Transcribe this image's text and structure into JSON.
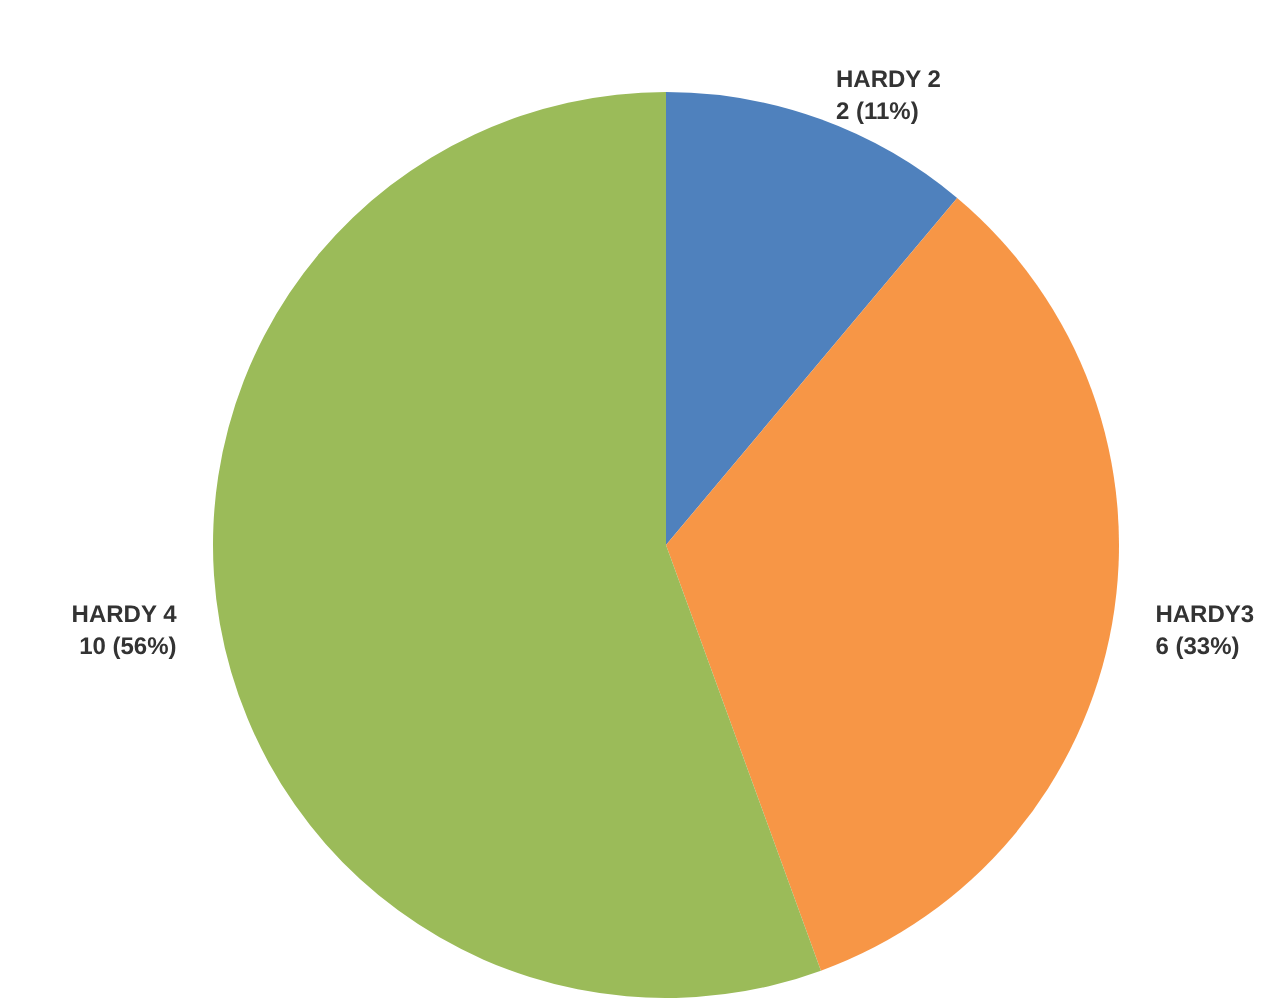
{
  "chart_data": {
    "type": "pie",
    "categories": [
      "HARDY 2",
      "HARDY3",
      "HARDY 4"
    ],
    "values": [
      2,
      6,
      10
    ],
    "colors": [
      "#4f81bd",
      "#f79646",
      "#9bbb59"
    ],
    "value_labels": [
      "2 (11%)",
      "6 (33%)",
      "10 (56%)"
    ],
    "legend": false
  }
}
